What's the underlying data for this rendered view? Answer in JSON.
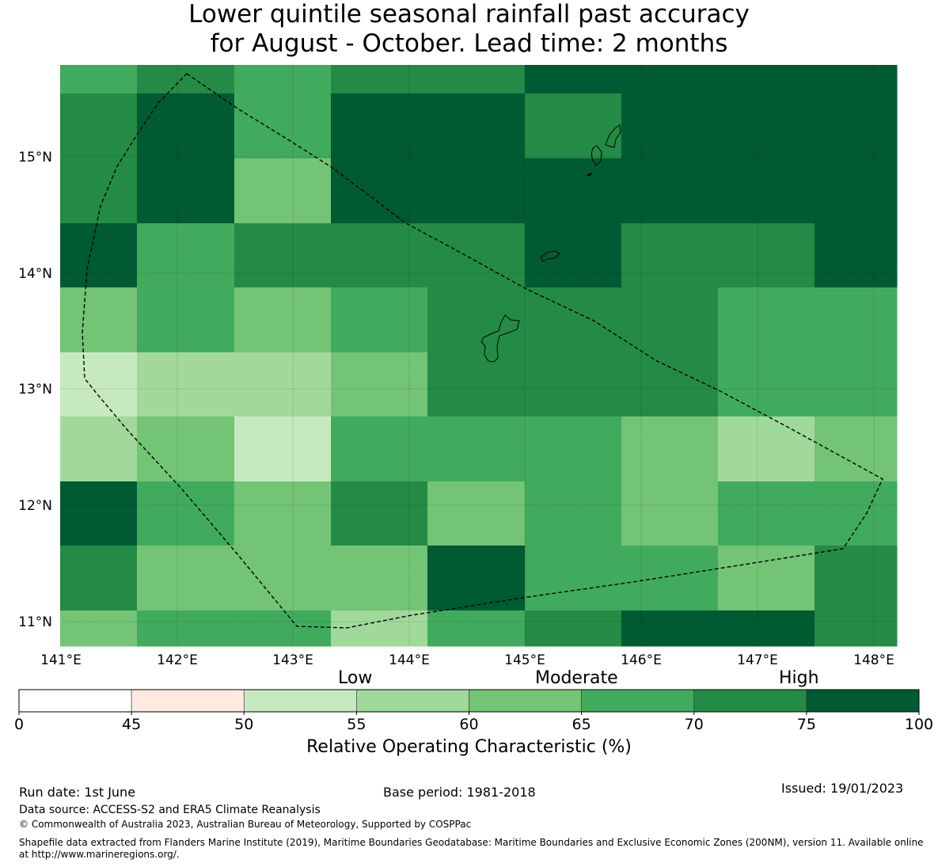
{
  "title": {
    "line1": "Lower quintile seasonal rainfall past accuracy",
    "line2": "for August - October. Lead time: 2 months"
  },
  "map": {
    "lon_ticks": [
      "141°E",
      "142°E",
      "143°E",
      "144°E",
      "145°E",
      "146°E",
      "147°E",
      "148°E"
    ],
    "lat_ticks": [
      "15°N",
      "14°N",
      "13°N",
      "12°N",
      "11°N"
    ],
    "grid_lines": true,
    "region_outline": "dashed",
    "cell_values_roc_percent": [
      [
        67,
        72,
        67,
        72,
        72,
        77,
        77,
        77,
        77
      ],
      [
        72,
        77,
        67,
        77,
        77,
        72,
        77,
        77,
        77
      ],
      [
        72,
        77,
        62,
        77,
        77,
        77,
        77,
        77,
        77
      ],
      [
        77,
        67,
        72,
        72,
        72,
        77,
        72,
        72,
        77
      ],
      [
        62,
        67,
        62,
        67,
        72,
        72,
        72,
        67,
        67
      ],
      [
        53,
        57,
        57,
        62,
        72,
        72,
        72,
        67,
        67
      ],
      [
        57,
        62,
        53,
        67,
        67,
        67,
        62,
        57,
        62
      ],
      [
        77,
        67,
        62,
        72,
        62,
        67,
        62,
        67,
        67
      ],
      [
        72,
        62,
        62,
        62,
        77,
        67,
        67,
        62,
        72
      ],
      [
        62,
        67,
        67,
        57,
        67,
        72,
        77,
        77,
        72
      ]
    ]
  },
  "colorbar": {
    "tick_labels": [
      "0",
      "45",
      "50",
      "55",
      "60",
      "65",
      "70",
      "75",
      "100"
    ],
    "colors": [
      "#ffffff",
      "#feeae1",
      "#c7e9c0",
      "#a1d99b",
      "#74c476",
      "#41ab5d",
      "#238b45",
      "#005a32"
    ],
    "categories": {
      "low": "Low",
      "moderate": "Moderate",
      "high": "High"
    },
    "label": "Relative Operating Characteristic (%)"
  },
  "footer": {
    "run_date": "Run date: 1st June",
    "base_period": "Base period: 1981-2018",
    "issued": "Issued: 19/01/2023",
    "data_source": "Data source: ACCESS-S2 and ERA5 Climate Reanalysis",
    "copyright": "© Commonwealth of Australia 2023, Australian Bureau of Meteorology, Supported by COSPPac",
    "shapefile": "Shapefile data extracted from Flanders Marine Institute (2019), Maritime Boundaries Geodatabase: Maritime Boundaries and Exclusive Economic Zones (200NM), version 11. Available online at http://www.marineregions.org/."
  }
}
